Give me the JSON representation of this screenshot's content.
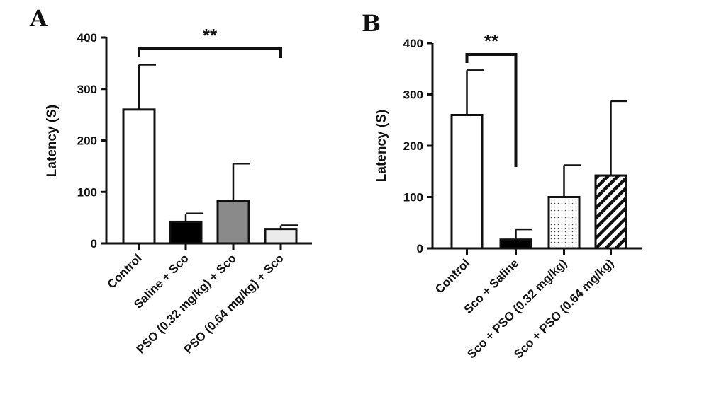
{
  "chart_data": [
    {
      "panel": "A",
      "type": "bar",
      "ylabel": "Latency (S)",
      "ylim": [
        0,
        400
      ],
      "yticks": [
        0,
        100,
        200,
        300,
        400
      ],
      "categories": [
        "Control",
        "Saline + Sco",
        "PSO (0.32 mg/kg) + Sco",
        "PSO (0.64 mg/kg) + Sco"
      ],
      "values": [
        260,
        42,
        82,
        28
      ],
      "error_upper": [
        347,
        58,
        155,
        35
      ],
      "fills": [
        "white",
        "black",
        "gray",
        "lightgray"
      ],
      "significance": {
        "label": "**",
        "from": 0,
        "to": 3
      },
      "grid": false
    },
    {
      "panel": "B",
      "type": "bar",
      "ylabel": "Latency (S)",
      "ylim": [
        0,
        400
      ],
      "yticks": [
        0,
        100,
        200,
        300,
        400
      ],
      "categories": [
        "Control",
        "Sco + Saline",
        "Sco + PSO (0.32 mg/kg)",
        "Sco + PSO (0.64 mg/kg)"
      ],
      "values": [
        260,
        17,
        100,
        142
      ],
      "error_upper": [
        347,
        37,
        162,
        287
      ],
      "fills": [
        "white",
        "black",
        "dotted",
        "hatched"
      ],
      "significance": {
        "label": "**",
        "from": 0,
        "to": 1
      },
      "grid": false
    }
  ]
}
